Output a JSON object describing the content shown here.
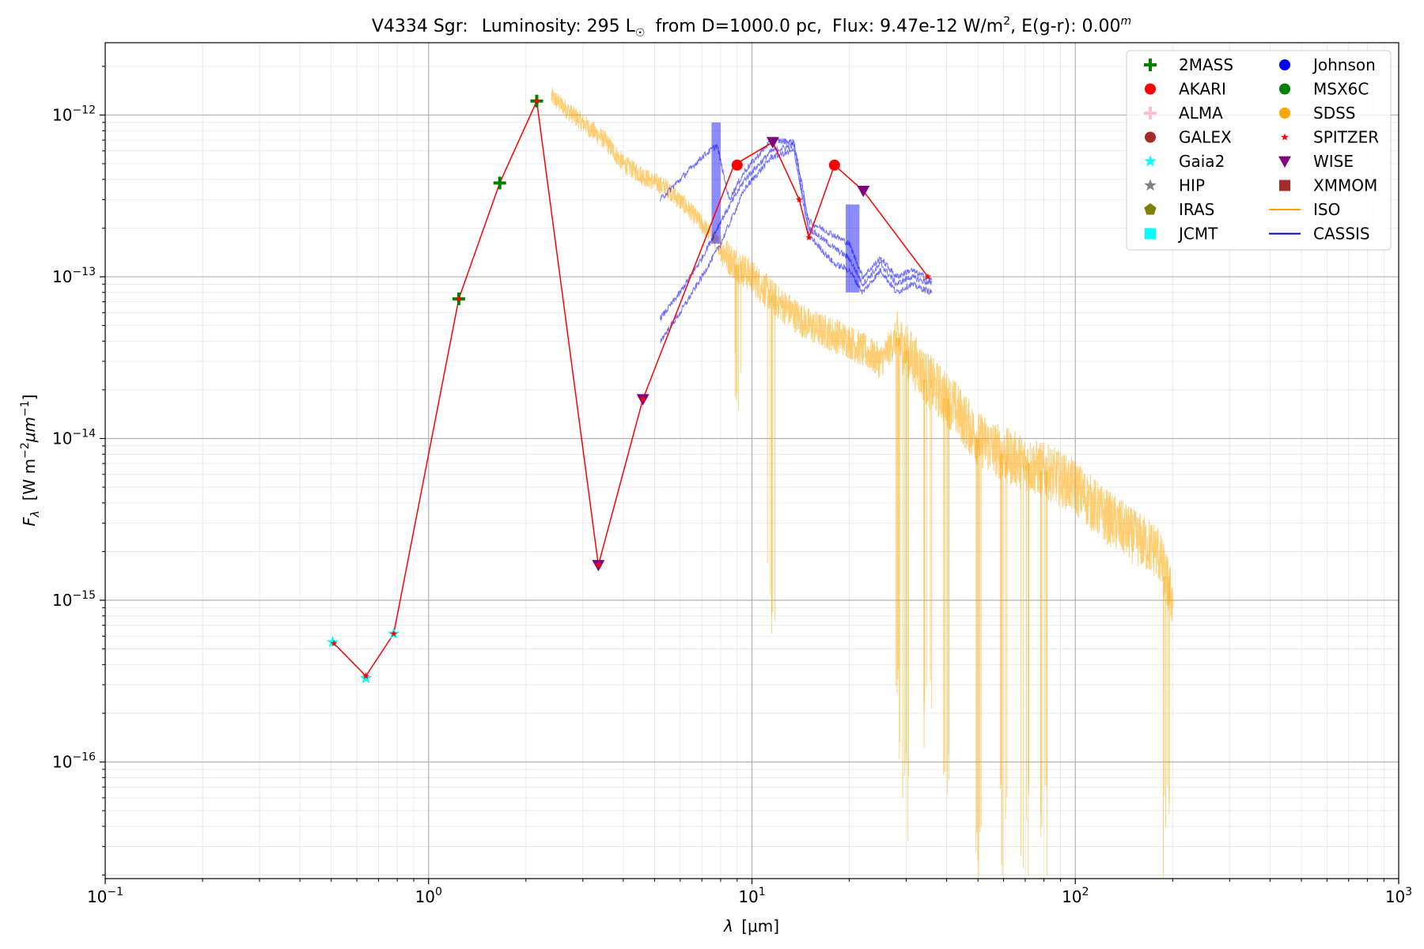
{
  "chart_data": {
    "type": "scatter",
    "title": {
      "object": "V4334 Sgr:",
      "luminosity_label": "Luminosity: 295 L",
      "sun_symbol": "☉",
      "distance_label": "from D=1000.0 pc,",
      "flux_label": "Flux: 9.47e-12 W/m",
      "flux_exp": "2",
      "extinction_label": ", E(g-r): 0.00",
      "extinction_exp": "m"
    },
    "xlabel": {
      "symbol": "λ",
      "unit": "[μm]"
    },
    "ylabel": {
      "symbol": "F",
      "sub": "λ",
      "unit_a": "[W m",
      "exp_a": "−2",
      "unit_b": "μm",
      "exp_b": "−1",
      "unit_c": "]"
    },
    "xscale": "log",
    "yscale": "log",
    "xlim": [
      0.1,
      1000
    ],
    "ylim": [
      1.9e-17,
      2.8e-12
    ],
    "x_ticks": [
      {
        "value": 0.1,
        "base": "10",
        "exp": "−1"
      },
      {
        "value": 1,
        "base": "10",
        "exp": "0"
      },
      {
        "value": 10,
        "base": "10",
        "exp": "1"
      },
      {
        "value": 100,
        "base": "10",
        "exp": "2"
      },
      {
        "value": 1000,
        "base": "10",
        "exp": "3"
      }
    ],
    "y_ticks": [
      {
        "value": 1e-16,
        "base": "10",
        "exp": "−16"
      },
      {
        "value": 1e-15,
        "base": "10",
        "exp": "−15"
      },
      {
        "value": 1e-14,
        "base": "10",
        "exp": "−14"
      },
      {
        "value": 1e-13,
        "base": "10",
        "exp": "−13"
      },
      {
        "value": 1e-12,
        "base": "10",
        "exp": "−12"
      }
    ],
    "grid": true,
    "legend_position": "top-right",
    "legend": [
      {
        "name": "2MASS",
        "marker": "plus",
        "color": "#008000"
      },
      {
        "name": "AKARI",
        "marker": "circle",
        "color": "#ff0000"
      },
      {
        "name": "ALMA",
        "marker": "plus",
        "color": "#ffc0cb"
      },
      {
        "name": "GALEX",
        "marker": "circle",
        "color": "#a52a2a"
      },
      {
        "name": "Gaia2",
        "marker": "star",
        "color": "#00ffff"
      },
      {
        "name": "HIP",
        "marker": "star",
        "color": "#808080"
      },
      {
        "name": "IRAS",
        "marker": "pentagon",
        "color": "#808000"
      },
      {
        "name": "JCMT",
        "marker": "square",
        "color": "#00ffff"
      },
      {
        "name": "Johnson",
        "marker": "circle",
        "color": "#0000ff"
      },
      {
        "name": "MSX6C",
        "marker": "circle",
        "color": "#008000"
      },
      {
        "name": "SDSS",
        "marker": "circle",
        "color": "#ffa500"
      },
      {
        "name": "SPITZER",
        "marker": "star",
        "color": "#ff0000"
      },
      {
        "name": "WISE",
        "marker": "triangle-down",
        "color": "#800080"
      },
      {
        "name": "XMMOM",
        "marker": "square",
        "color": "#a52a2a"
      },
      {
        "name": "ISO",
        "marker": "line",
        "color": "#ffa500"
      },
      {
        "name": "CASSIS",
        "marker": "line",
        "color": "#0000cc"
      }
    ],
    "sed_line": {
      "color": "#ff0000",
      "x": [
        0.51,
        0.64,
        0.78,
        1.24,
        1.66,
        2.16,
        3.35,
        4.6,
        8.8,
        11.6,
        14.0,
        15.0,
        18.0,
        22.1,
        35.0
      ],
      "y": [
        5.4e-16,
        3.4e-16,
        6.2e-16,
        7.3e-14,
        3.8e-13,
        1.22e-12,
        1.65e-15,
        1.75e-14,
        4.9e-13,
        6.8e-13,
        3e-13,
        1.75e-13,
        4.9e-13,
        3.4e-13,
        1e-13
      ]
    },
    "points": [
      {
        "survey": "Gaia2",
        "marker": "star",
        "color": "#00ffff",
        "x": [
          0.505,
          0.64,
          0.78
        ],
        "y": [
          5.5e-16,
          3.3e-16,
          6.2e-16
        ]
      },
      {
        "survey": "2MASS",
        "marker": "plus",
        "color": "#008000",
        "x": [
          1.24,
          1.66,
          2.16
        ],
        "y": [
          7.3e-14,
          3.8e-13,
          1.22e-12
        ]
      },
      {
        "survey": "WISE",
        "marker": "triangle-down",
        "color": "#800080",
        "x": [
          3.35,
          4.6,
          11.6,
          22.1
        ],
        "y": [
          1.65e-15,
          1.75e-14,
          6.8e-13,
          3.4e-13
        ]
      },
      {
        "survey": "AKARI",
        "marker": "circle",
        "color": "#ff0000",
        "x": [
          9.0,
          18.0
        ],
        "y": [
          4.9e-13,
          4.9e-13
        ]
      },
      {
        "survey": "SPITZER",
        "marker": "star",
        "color": "#ff0000",
        "x": [
          0.51,
          0.64,
          0.78,
          1.24,
          2.16,
          3.35,
          4.6,
          14.0,
          15.0,
          35.0
        ],
        "y": [
          5.4e-16,
          3.4e-16,
          6.2e-16,
          7.3e-14,
          1.22e-12,
          1.65e-15,
          1.75e-14,
          3e-13,
          1.75e-13,
          1e-13
        ]
      }
    ],
    "spectra": [
      {
        "name": "ISO",
        "color": "#ffa500",
        "envelope": [
          [
            2.4,
            1.3e-12
          ],
          [
            2.8,
            1e-12
          ],
          [
            3.5,
            7e-13
          ],
          [
            4.0,
            5e-13
          ],
          [
            4.8,
            4e-13
          ],
          [
            5.5,
            3.5e-13
          ],
          [
            6.5,
            2.5e-13
          ],
          [
            7.5,
            1.8e-13
          ],
          [
            8.5,
            1.3e-13
          ],
          [
            10.0,
            1e-13
          ],
          [
            12.0,
            7e-14
          ],
          [
            15.0,
            5e-14
          ],
          [
            20.0,
            4e-14
          ],
          [
            25.0,
            3e-14
          ],
          [
            28.0,
            4.2e-14
          ],
          [
            35.0,
            2.3e-14
          ],
          [
            42.0,
            1.6e-14
          ],
          [
            50.0,
            1e-14
          ],
          [
            60.0,
            8e-15
          ],
          [
            70.0,
            7e-15
          ],
          [
            85.0,
            6e-15
          ],
          [
            100.0,
            5e-15
          ],
          [
            120.0,
            3.5e-15
          ],
          [
            150.0,
            2.5e-15
          ],
          [
            180.0,
            2e-15
          ],
          [
            200.0,
            1e-15
          ]
        ],
        "dips": [
          [
            9.0,
            1e-14
          ],
          [
            11.5,
            4.5e-16
          ],
          [
            28.0,
            1e-16
          ],
          [
            30.0,
            3.2e-17
          ],
          [
            35.0,
            8e-17
          ],
          [
            40.0,
            5e-17
          ],
          [
            50.0,
            1.9e-17
          ],
          [
            60.0,
            1.9e-17
          ],
          [
            70.0,
            1.9e-17
          ],
          [
            80.0,
            1.9e-17
          ],
          [
            190.0,
            1.9e-17
          ]
        ]
      },
      {
        "name": "CASSIS",
        "color": "#0000ff",
        "curves": [
          [
            [
              5.2,
              5.5e-14
            ],
            [
              6.0,
              8e-14
            ],
            [
              7.0,
              1.3e-13
            ],
            [
              8.0,
              2.2e-13
            ],
            [
              9.5,
              4e-13
            ],
            [
              11.5,
              6e-13
            ],
            [
              13.5,
              6.5e-13
            ],
            [
              15.0,
              2e-13
            ],
            [
              18.0,
              1.5e-13
            ],
            [
              20.0,
              1.3e-13
            ],
            [
              22.0,
              9e-14
            ],
            [
              25.0,
              1.2e-13
            ],
            [
              28.0,
              9e-14
            ],
            [
              31.0,
              1e-13
            ],
            [
              36.0,
              9e-14
            ]
          ],
          [
            [
              5.2,
              4e-14
            ],
            [
              6.0,
              6e-14
            ],
            [
              7.0,
              1e-13
            ],
            [
              8.0,
              1.6e-13
            ],
            [
              9.5,
              3.5e-13
            ],
            [
              11.5,
              5.5e-13
            ],
            [
              13.5,
              6e-13
            ],
            [
              15.0,
              1.8e-13
            ],
            [
              18.0,
              1.2e-13
            ],
            [
              20.0,
              1.1e-13
            ],
            [
              22.0,
              8e-14
            ],
            [
              25.0,
              1.1e-13
            ],
            [
              28.0,
              8e-14
            ],
            [
              31.0,
              9e-14
            ],
            [
              36.0,
              8e-14
            ]
          ],
          [
            [
              5.2,
              3e-13
            ],
            [
              6.0,
              4e-13
            ],
            [
              7.0,
              5.5e-13
            ],
            [
              7.8,
              6.5e-13
            ],
            [
              8.5,
              3e-13
            ],
            [
              9.5,
              4.5e-13
            ],
            [
              11.5,
              7e-13
            ],
            [
              13.5,
              6.8e-13
            ],
            [
              15.0,
              2.2e-13
            ],
            [
              18.0,
              1.8e-13
            ],
            [
              20.0,
              1.6e-13
            ],
            [
              22.0,
              1e-13
            ],
            [
              25.0,
              1.3e-13
            ],
            [
              28.0,
              1e-13
            ],
            [
              31.0,
              1.1e-13
            ],
            [
              36.0,
              9.5e-14
            ]
          ]
        ]
      }
    ]
  }
}
